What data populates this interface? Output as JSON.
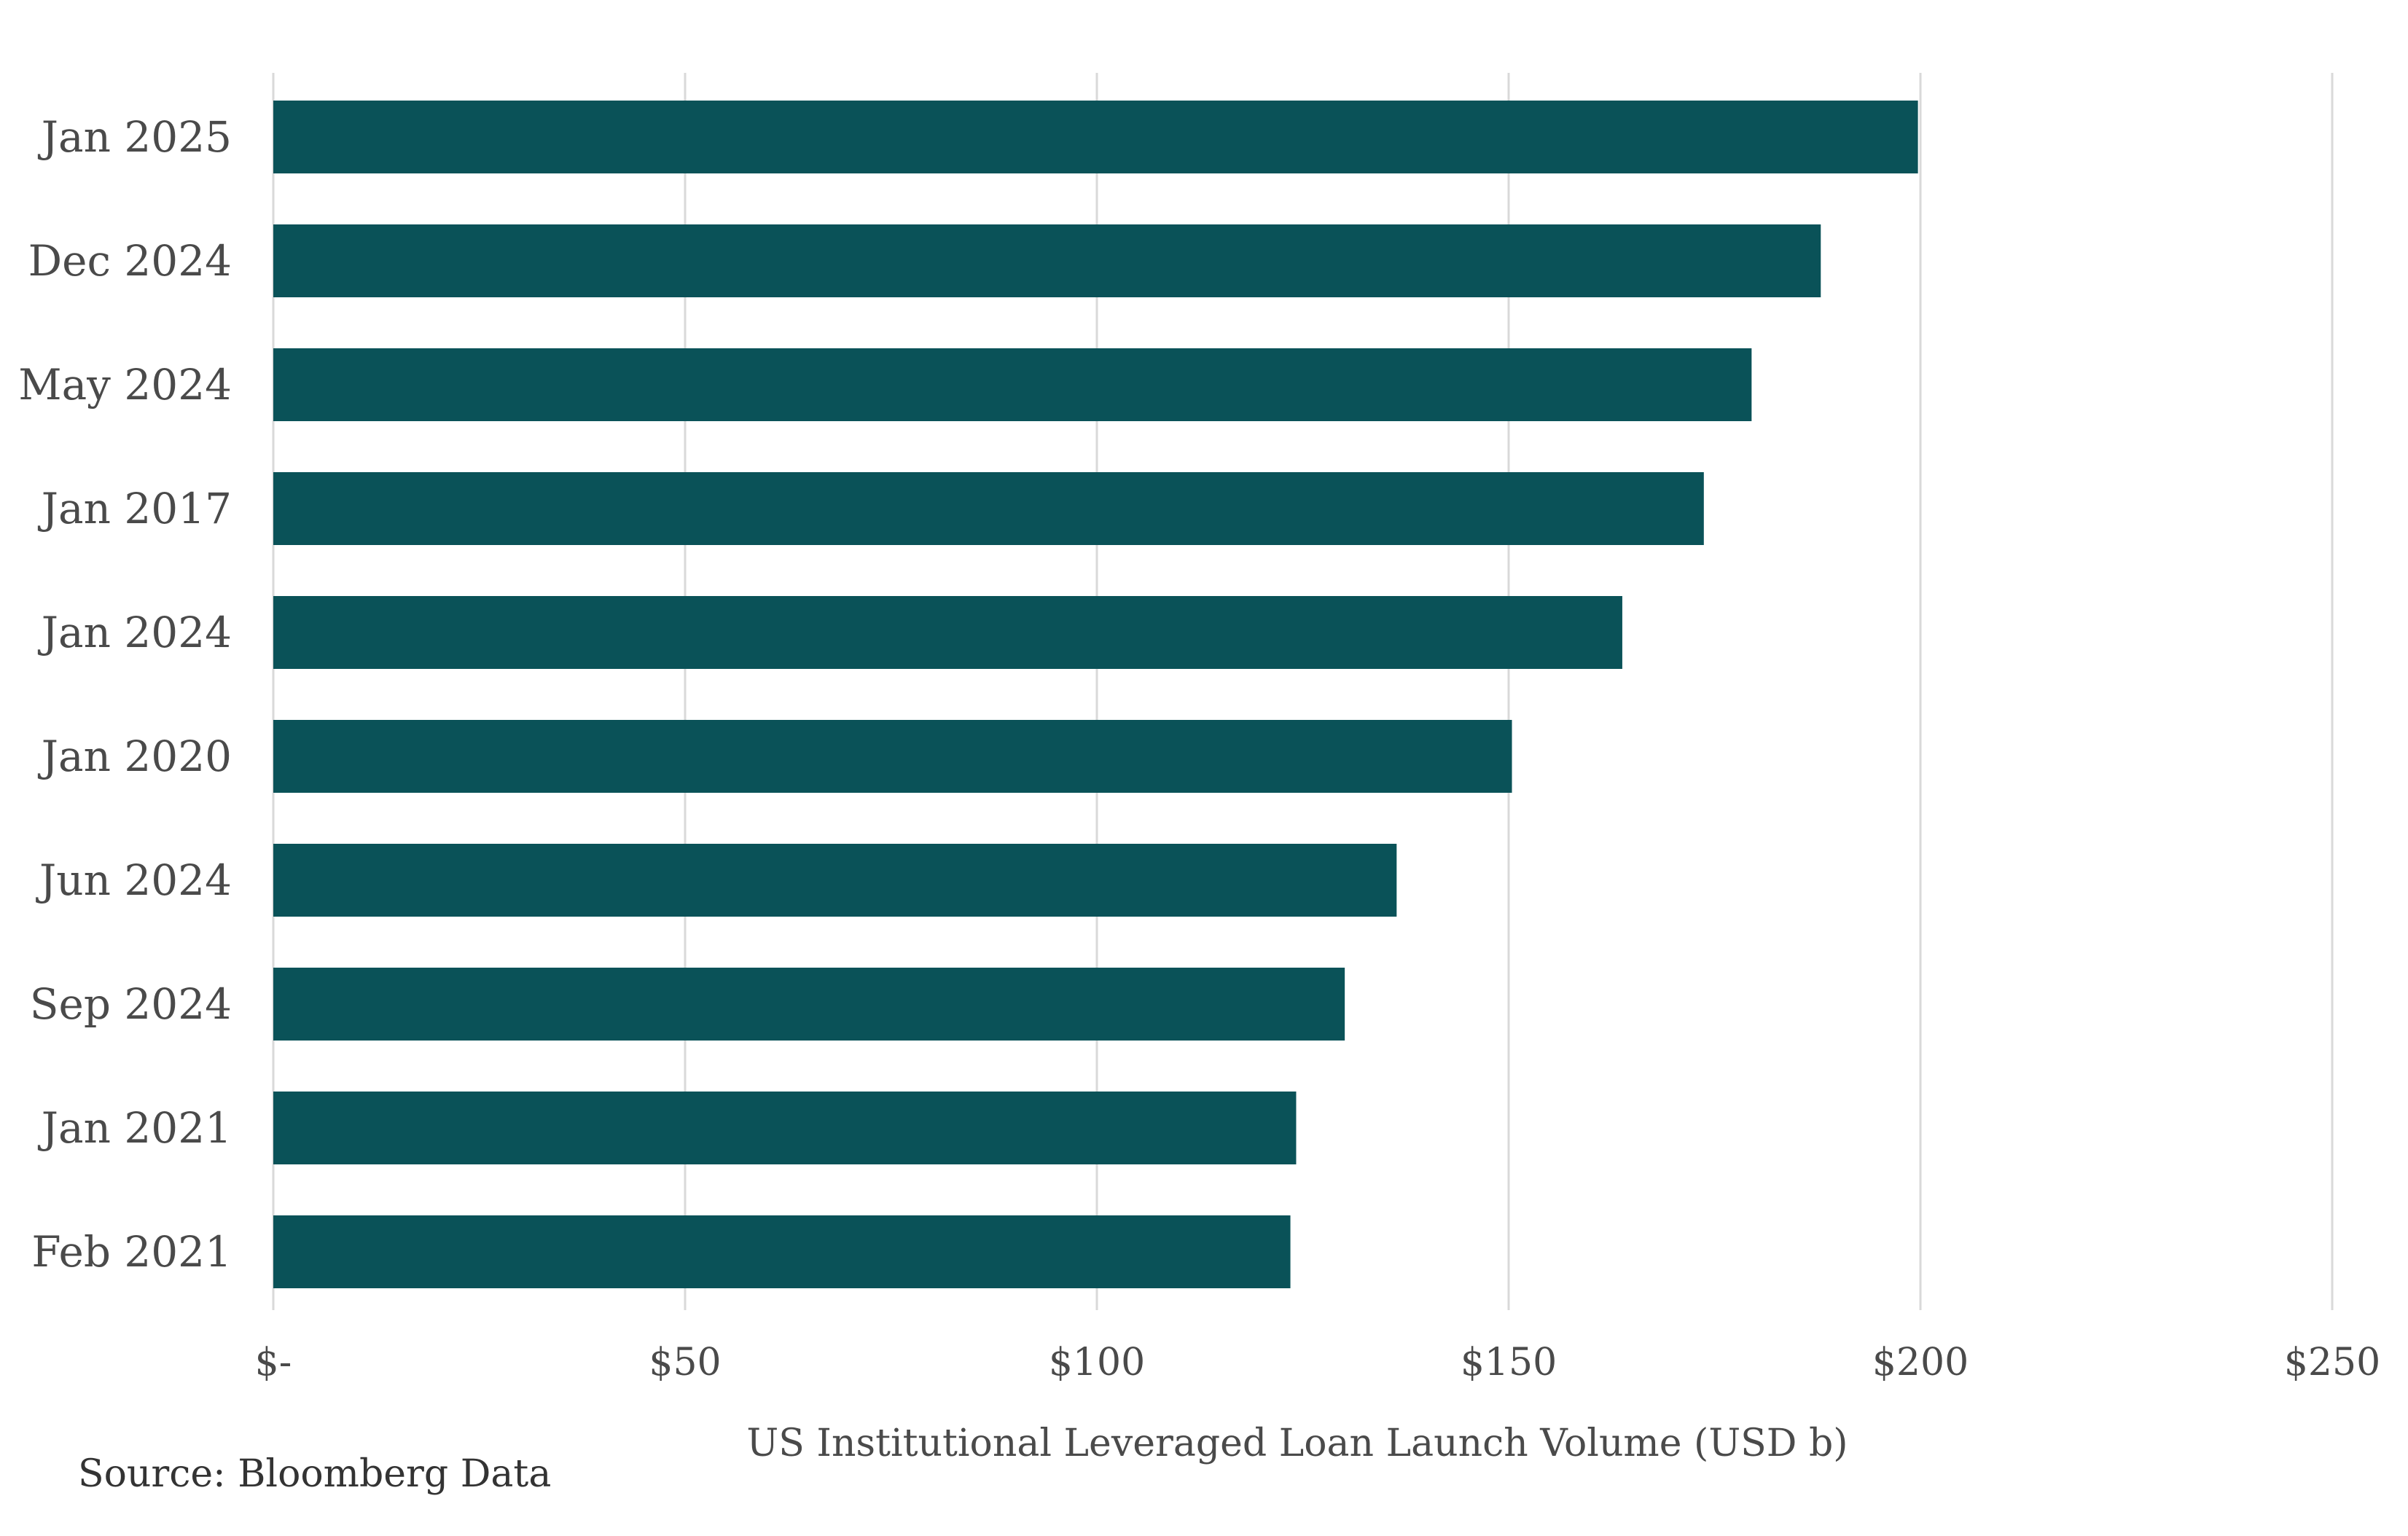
{
  "chart_data": {
    "type": "bar",
    "orientation": "horizontal",
    "categories": [
      "Jan 2025",
      "Dec 2024",
      "May 2024",
      "Jan 2017",
      "Jan 2024",
      "Jan 2020",
      "Jun 2024",
      "Sep 2024",
      "Jan 2021",
      "Feb 2021"
    ],
    "values": [
      199.7,
      187.9,
      179.5,
      173.7,
      163.8,
      150.4,
      136.4,
      130.1,
      124.2,
      123.5
    ],
    "title": "",
    "xlabel": "US Institutional Leveraged Loan Launch Volume (USD b)",
    "ylabel": "",
    "xlim": [
      0,
      250
    ],
    "x_ticks": [
      0,
      50,
      100,
      150,
      200,
      250
    ],
    "x_tick_labels": [
      "$-",
      "$50",
      "$100",
      "$150",
      "$200",
      "$250"
    ],
    "grid": "vertical",
    "legend": "none",
    "bar_color": "#0a5258"
  },
  "source": "Source: Bloomberg Data"
}
